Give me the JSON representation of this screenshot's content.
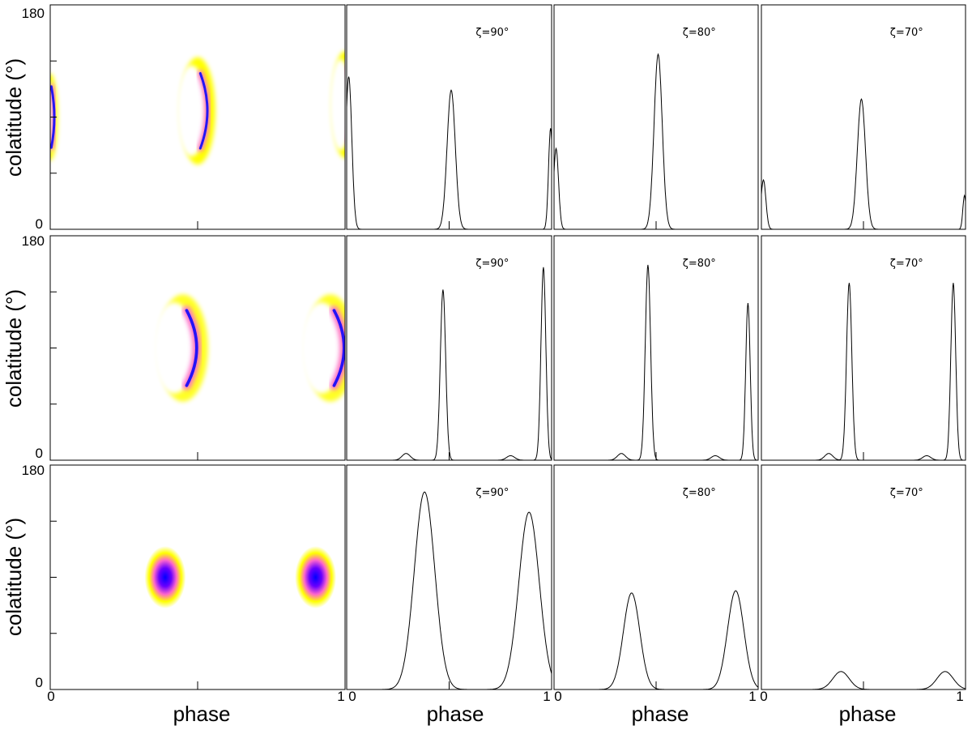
{
  "figure": {
    "ylabel": "colatitude (°)",
    "xlabel": "phase",
    "y_ticks": [
      "0",
      "180"
    ],
    "x_ticks": [
      "0",
      "1"
    ],
    "colors": {
      "map_low": "#ffff00",
      "map_mid": "#ff66cc",
      "map_high": "#0000ff",
      "line": "#000000"
    }
  },
  "chart_data": [
    {
      "row": 1,
      "map": {
        "type": "heatmap",
        "xlim": [
          0,
          1
        ],
        "ylim": [
          0,
          180
        ],
        "features": [
          {
            "kind": "crescent",
            "phase": 0.0,
            "colat": 90,
            "width_phase": 0.05,
            "colat_span": 70,
            "opens": "left"
          },
          {
            "kind": "crescent",
            "phase": 0.5,
            "colat": 95,
            "width_phase": 0.12,
            "colat_span": 86,
            "opens": "left"
          },
          {
            "kind": "crescent",
            "phase": 1.0,
            "colat": 100,
            "width_phase": 0.09,
            "colat_span": 86,
            "opens": "left"
          }
        ]
      },
      "profiles": [
        {
          "zeta": "ζ=90°",
          "type": "line",
          "xlim": [
            0,
            1
          ],
          "peaks": [
            {
              "phase": 0.01,
              "height": 0.68,
              "width": 0.015
            },
            {
              "phase": 0.51,
              "height": 0.62,
              "width": 0.02
            },
            {
              "phase": 0.995,
              "height": 0.45,
              "width": 0.01
            }
          ]
        },
        {
          "zeta": "ζ=80°",
          "type": "line",
          "xlim": [
            0,
            1
          ],
          "peaks": [
            {
              "phase": 0.01,
              "height": 0.36,
              "width": 0.012
            },
            {
              "phase": 0.51,
              "height": 0.78,
              "width": 0.02
            }
          ]
        },
        {
          "zeta": "ζ=70°",
          "type": "line",
          "xlim": [
            0,
            1
          ],
          "peaks": [
            {
              "phase": 0.01,
              "height": 0.22,
              "width": 0.012
            },
            {
              "phase": 0.49,
              "height": 0.58,
              "width": 0.02
            },
            {
              "phase": 0.995,
              "height": 0.15,
              "width": 0.008
            }
          ]
        }
      ]
    },
    {
      "row": 2,
      "map": {
        "type": "heatmap",
        "xlim": [
          0,
          1
        ],
        "ylim": [
          0,
          180
        ],
        "features": [
          {
            "kind": "ring",
            "phase": 0.45,
            "colat": 90,
            "width_phase": 0.17,
            "colat_span": 86,
            "opens": "left"
          },
          {
            "kind": "ring",
            "phase": 0.95,
            "colat": 90,
            "width_phase": 0.17,
            "colat_span": 86,
            "opens": "left"
          }
        ]
      },
      "profiles": [
        {
          "zeta": "ζ=90°",
          "type": "line",
          "xlim": [
            0,
            1
          ],
          "peaks": [
            {
              "phase": 0.29,
              "height": 0.03,
              "width": 0.02
            },
            {
              "phase": 0.47,
              "height": 0.76,
              "width": 0.013
            },
            {
              "phase": 0.8,
              "height": 0.02,
              "width": 0.02
            },
            {
              "phase": 0.96,
              "height": 0.86,
              "width": 0.012
            }
          ]
        },
        {
          "zeta": "ζ=80°",
          "type": "line",
          "xlim": [
            0,
            1
          ],
          "peaks": [
            {
              "phase": 0.33,
              "height": 0.03,
              "width": 0.02
            },
            {
              "phase": 0.46,
              "height": 0.87,
              "width": 0.013
            },
            {
              "phase": 0.79,
              "height": 0.02,
              "width": 0.02
            },
            {
              "phase": 0.95,
              "height": 0.7,
              "width": 0.011
            }
          ]
        },
        {
          "zeta": "ζ=70°",
          "type": "line",
          "xlim": [
            0,
            1
          ],
          "peaks": [
            {
              "phase": 0.33,
              "height": 0.03,
              "width": 0.02
            },
            {
              "phase": 0.43,
              "height": 0.79,
              "width": 0.013
            },
            {
              "phase": 0.81,
              "height": 0.02,
              "width": 0.02
            },
            {
              "phase": 0.94,
              "height": 0.79,
              "width": 0.012
            }
          ]
        }
      ]
    },
    {
      "row": 3,
      "map": {
        "type": "heatmap",
        "xlim": [
          0,
          1
        ],
        "ylim": [
          0,
          180
        ],
        "features": [
          {
            "kind": "blob",
            "phase": 0.39,
            "colat": 90,
            "width_phase": 0.14,
            "colat_span": 50
          },
          {
            "kind": "blob",
            "phase": 0.9,
            "colat": 90,
            "width_phase": 0.14,
            "colat_span": 50
          }
        ]
      },
      "profiles": [
        {
          "zeta": "ζ=90°",
          "type": "line",
          "xlim": [
            0,
            1
          ],
          "peaks": [
            {
              "phase": 0.38,
              "height": 0.88,
              "width": 0.05
            },
            {
              "phase": 0.89,
              "height": 0.79,
              "width": 0.05
            }
          ]
        },
        {
          "zeta": "ζ=80°",
          "type": "line",
          "xlim": [
            0,
            1
          ],
          "peaks": [
            {
              "phase": 0.38,
              "height": 0.43,
              "width": 0.04
            },
            {
              "phase": 0.89,
              "height": 0.44,
              "width": 0.04
            }
          ]
        },
        {
          "zeta": "ζ=70°",
          "type": "line",
          "xlim": [
            0,
            1
          ],
          "peaks": [
            {
              "phase": 0.39,
              "height": 0.08,
              "width": 0.04
            },
            {
              "phase": 0.9,
              "height": 0.08,
              "width": 0.04
            }
          ]
        }
      ]
    }
  ]
}
